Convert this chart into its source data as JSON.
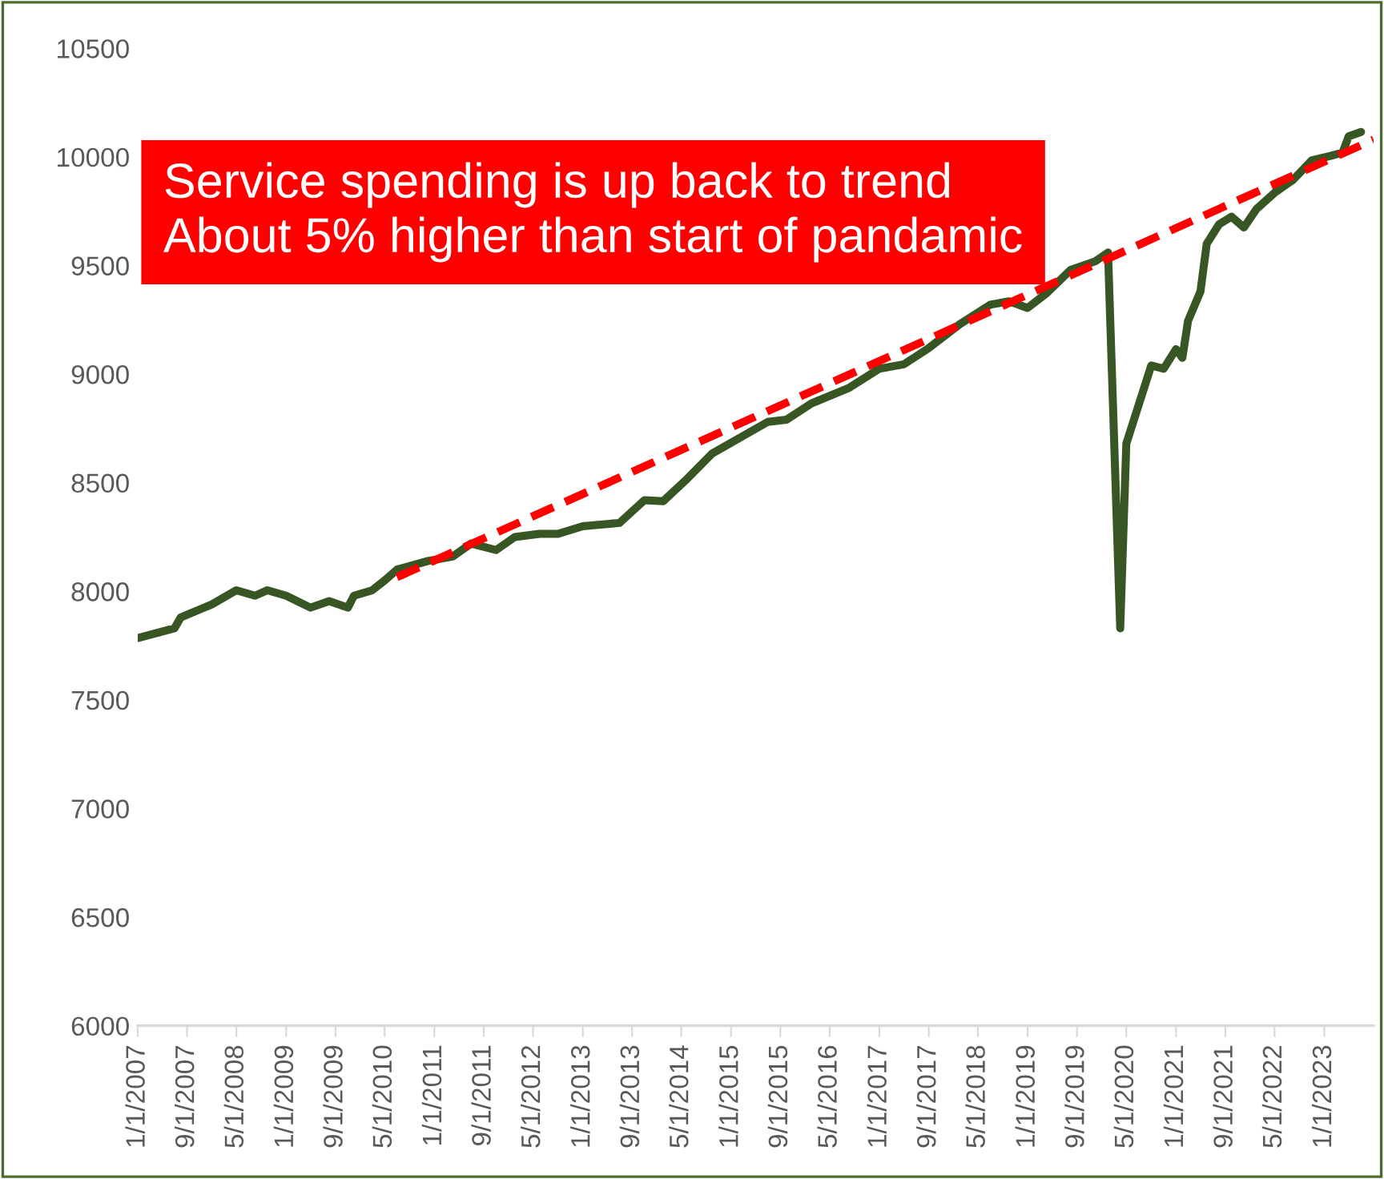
{
  "chart_data": {
    "type": "line",
    "annotations": [
      "Service spending is up back to trend\nAbout 5% higher than start of pandamic"
    ],
    "xlim": [
      "2007-01",
      "2023-09"
    ],
    "xticks": [
      {
        "value": "2007-01-01",
        "label": "1/1/2007"
      },
      {
        "value": "2007-09-01",
        "label": "9/1/2007"
      },
      {
        "value": "2008-05-01",
        "label": "5/1/2008"
      },
      {
        "value": "2009-01-01",
        "label": "1/1/2009"
      },
      {
        "value": "2009-09-01",
        "label": "9/1/2009"
      },
      {
        "value": "2010-05-01",
        "label": "5/1/2010"
      },
      {
        "value": "2011-01-01",
        "label": "1/1/2011"
      },
      {
        "value": "2011-09-01",
        "label": "9/1/2011"
      },
      {
        "value": "2012-05-01",
        "label": "5/1/2012"
      },
      {
        "value": "2013-01-01",
        "label": "1/1/2013"
      },
      {
        "value": "2013-09-01",
        "label": "9/1/2013"
      },
      {
        "value": "2014-05-01",
        "label": "5/1/2014"
      },
      {
        "value": "2015-01-01",
        "label": "1/1/2015"
      },
      {
        "value": "2015-09-01",
        "label": "9/1/2015"
      },
      {
        "value": "2016-05-01",
        "label": "5/1/2016"
      },
      {
        "value": "2017-01-01",
        "label": "1/1/2017"
      },
      {
        "value": "2017-09-01",
        "label": "9/1/2017"
      },
      {
        "value": "2018-05-01",
        "label": "5/1/2018"
      },
      {
        "value": "2019-01-01",
        "label": "1/1/2019"
      },
      {
        "value": "2019-09-01",
        "label": "9/1/2019"
      },
      {
        "value": "2020-05-01",
        "label": "5/1/2020"
      },
      {
        "value": "2021-01-01",
        "label": "1/1/2021"
      },
      {
        "value": "2021-09-01",
        "label": "9/1/2021"
      },
      {
        "value": "2022-05-01",
        "label": "5/1/2022"
      },
      {
        "value": "2023-01-01",
        "label": "1/1/2023"
      }
    ],
    "ylim": [
      6000,
      10500
    ],
    "yticks": [
      6000,
      6500,
      7000,
      7500,
      8000,
      8500,
      9000,
      9500,
      10000,
      10500
    ],
    "grid": false,
    "legend": false,
    "series": [
      {
        "color": "#375623",
        "line_style": "solid",
        "x": [
          "2007-01",
          "2007-07",
          "2007-08",
          "2008-01",
          "2008-05",
          "2008-08",
          "2008-10",
          "2009-01",
          "2009-05",
          "2009-08",
          "2009-11",
          "2009-12",
          "2010-03",
          "2010-05",
          "2010-07",
          "2010-12",
          "2011-04",
          "2011-07",
          "2011-11",
          "2012-02",
          "2012-06",
          "2012-09",
          "2013-01",
          "2013-07",
          "2013-11",
          "2014-02",
          "2014-06",
          "2014-10",
          "2015-07",
          "2015-10",
          "2016-02",
          "2016-08",
          "2017-01",
          "2017-05",
          "2017-09",
          "2018-02",
          "2018-07",
          "2018-10",
          "2019-01",
          "2019-04",
          "2019-08",
          "2019-12",
          "2020-02",
          "2020-04",
          "2020-05",
          "2020-09",
          "2020-11",
          "2021-01",
          "2021-02",
          "2021-03",
          "2021-05",
          "2021-06",
          "2021-08",
          "2021-10",
          "2021-12",
          "2022-02",
          "2022-05",
          "2022-08",
          "2022-11",
          "2023-02",
          "2023-04",
          "2023-05",
          "2023-07"
        ],
        "values": [
          7785,
          7830,
          7880,
          7940,
          8005,
          7980,
          8005,
          7980,
          7925,
          7955,
          7925,
          7980,
          8005,
          8050,
          8100,
          8140,
          8160,
          8220,
          8190,
          8250,
          8265,
          8265,
          8300,
          8315,
          8420,
          8415,
          8520,
          8635,
          8780,
          8790,
          8865,
          8935,
          9025,
          9045,
          9120,
          9230,
          9320,
          9335,
          9305,
          9370,
          9480,
          9520,
          9560,
          7830,
          8680,
          9040,
          9025,
          9115,
          9075,
          9245,
          9380,
          9600,
          9690,
          9725,
          9675,
          9760,
          9835,
          9895,
          9985,
          10005,
          10020,
          10095,
          10115
        ]
      },
      {
        "color": "#ff0000",
        "line_style": "dashed",
        "x": [
          "2010-07",
          "2023-09"
        ],
        "values": [
          8065,
          10080
        ]
      }
    ]
  }
}
